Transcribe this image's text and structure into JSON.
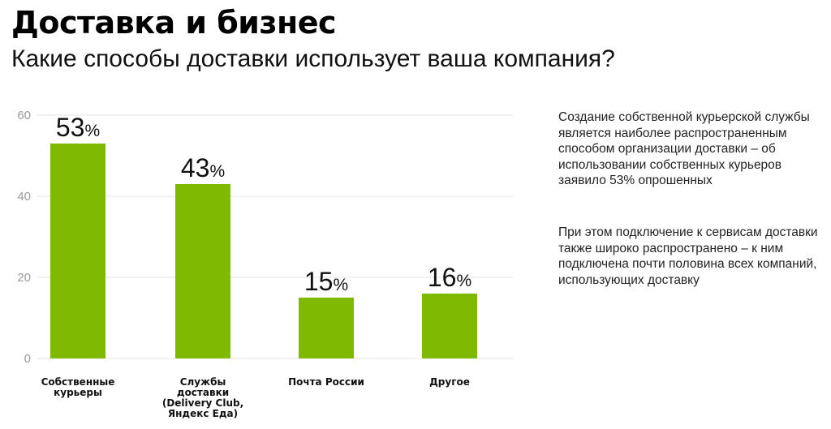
{
  "header": {
    "title": "Доставка и бизнес",
    "subtitle": "Какие способы доставки использует ваша компания?"
  },
  "chart_data": {
    "type": "bar",
    "categories": [
      [
        "Собственные",
        "курьеры"
      ],
      [
        "Службы",
        "доставки",
        "(Delivery Club,",
        "Яндекс Еда)"
      ],
      [
        "Почта России"
      ],
      [
        "Другое"
      ]
    ],
    "values": [
      53,
      43,
      15,
      16
    ],
    "value_labels": [
      "53",
      "43",
      "15",
      "16"
    ],
    "value_suffix": "%",
    "yticks": [
      0,
      20,
      40,
      60
    ],
    "ylim": [
      0,
      60
    ],
    "grid": true,
    "bar_color": "#7fba00"
  },
  "sidebar": {
    "paragraphs": [
      "Создание собственной курьерской службы является наиболее распространенным способом организации доставки – об использовании собственных курьеров заявило 53% опрошенных",
      "При этом подключение к сервисам доставки также широко распространено – к ним подключена почти половина всех компаний, использующих доставку"
    ]
  }
}
